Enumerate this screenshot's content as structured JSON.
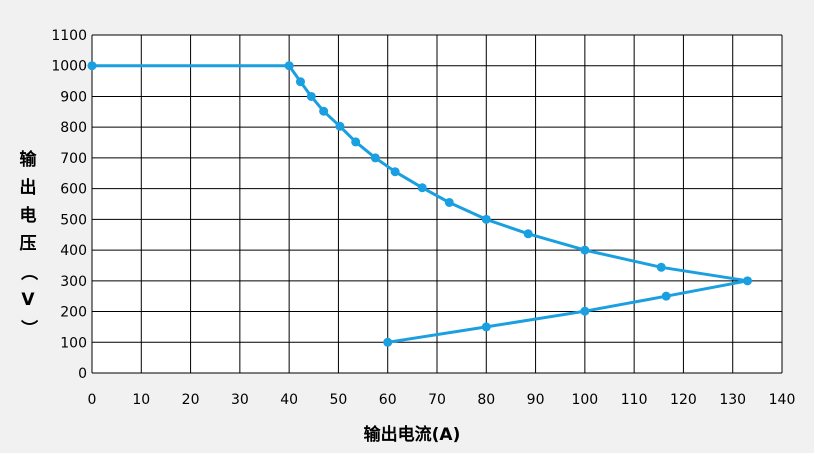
{
  "chart_data": {
    "type": "line",
    "title": "",
    "xlabel": "输出电流(A)",
    "ylabel": "输出电压（V）",
    "xlim": [
      0,
      140
    ],
    "ylim": [
      0,
      1100
    ],
    "x_ticks": [
      0,
      10,
      20,
      30,
      40,
      50,
      60,
      70,
      80,
      90,
      100,
      110,
      120,
      130,
      140
    ],
    "y_ticks": [
      0,
      100,
      200,
      300,
      400,
      500,
      600,
      700,
      800,
      900,
      1000,
      1100
    ],
    "grid": true,
    "legend": "none",
    "series": [
      {
        "color": "#1a9fe0",
        "points": [
          [
            0,
            1000
          ],
          [
            40,
            1000
          ],
          [
            42.3,
            948
          ],
          [
            44.5,
            900
          ],
          [
            47,
            852
          ],
          [
            50.3,
            803
          ],
          [
            53.5,
            752
          ],
          [
            57.5,
            700
          ],
          [
            61.5,
            655
          ],
          [
            67,
            603
          ],
          [
            72.5,
            555
          ],
          [
            80,
            500
          ],
          [
            88.5,
            453
          ],
          [
            100,
            400
          ],
          [
            115.5,
            344
          ],
          [
            133,
            300
          ],
          [
            116.5,
            250
          ],
          [
            100,
            201
          ],
          [
            80,
            150
          ],
          [
            60,
            100
          ]
        ]
      }
    ]
  }
}
